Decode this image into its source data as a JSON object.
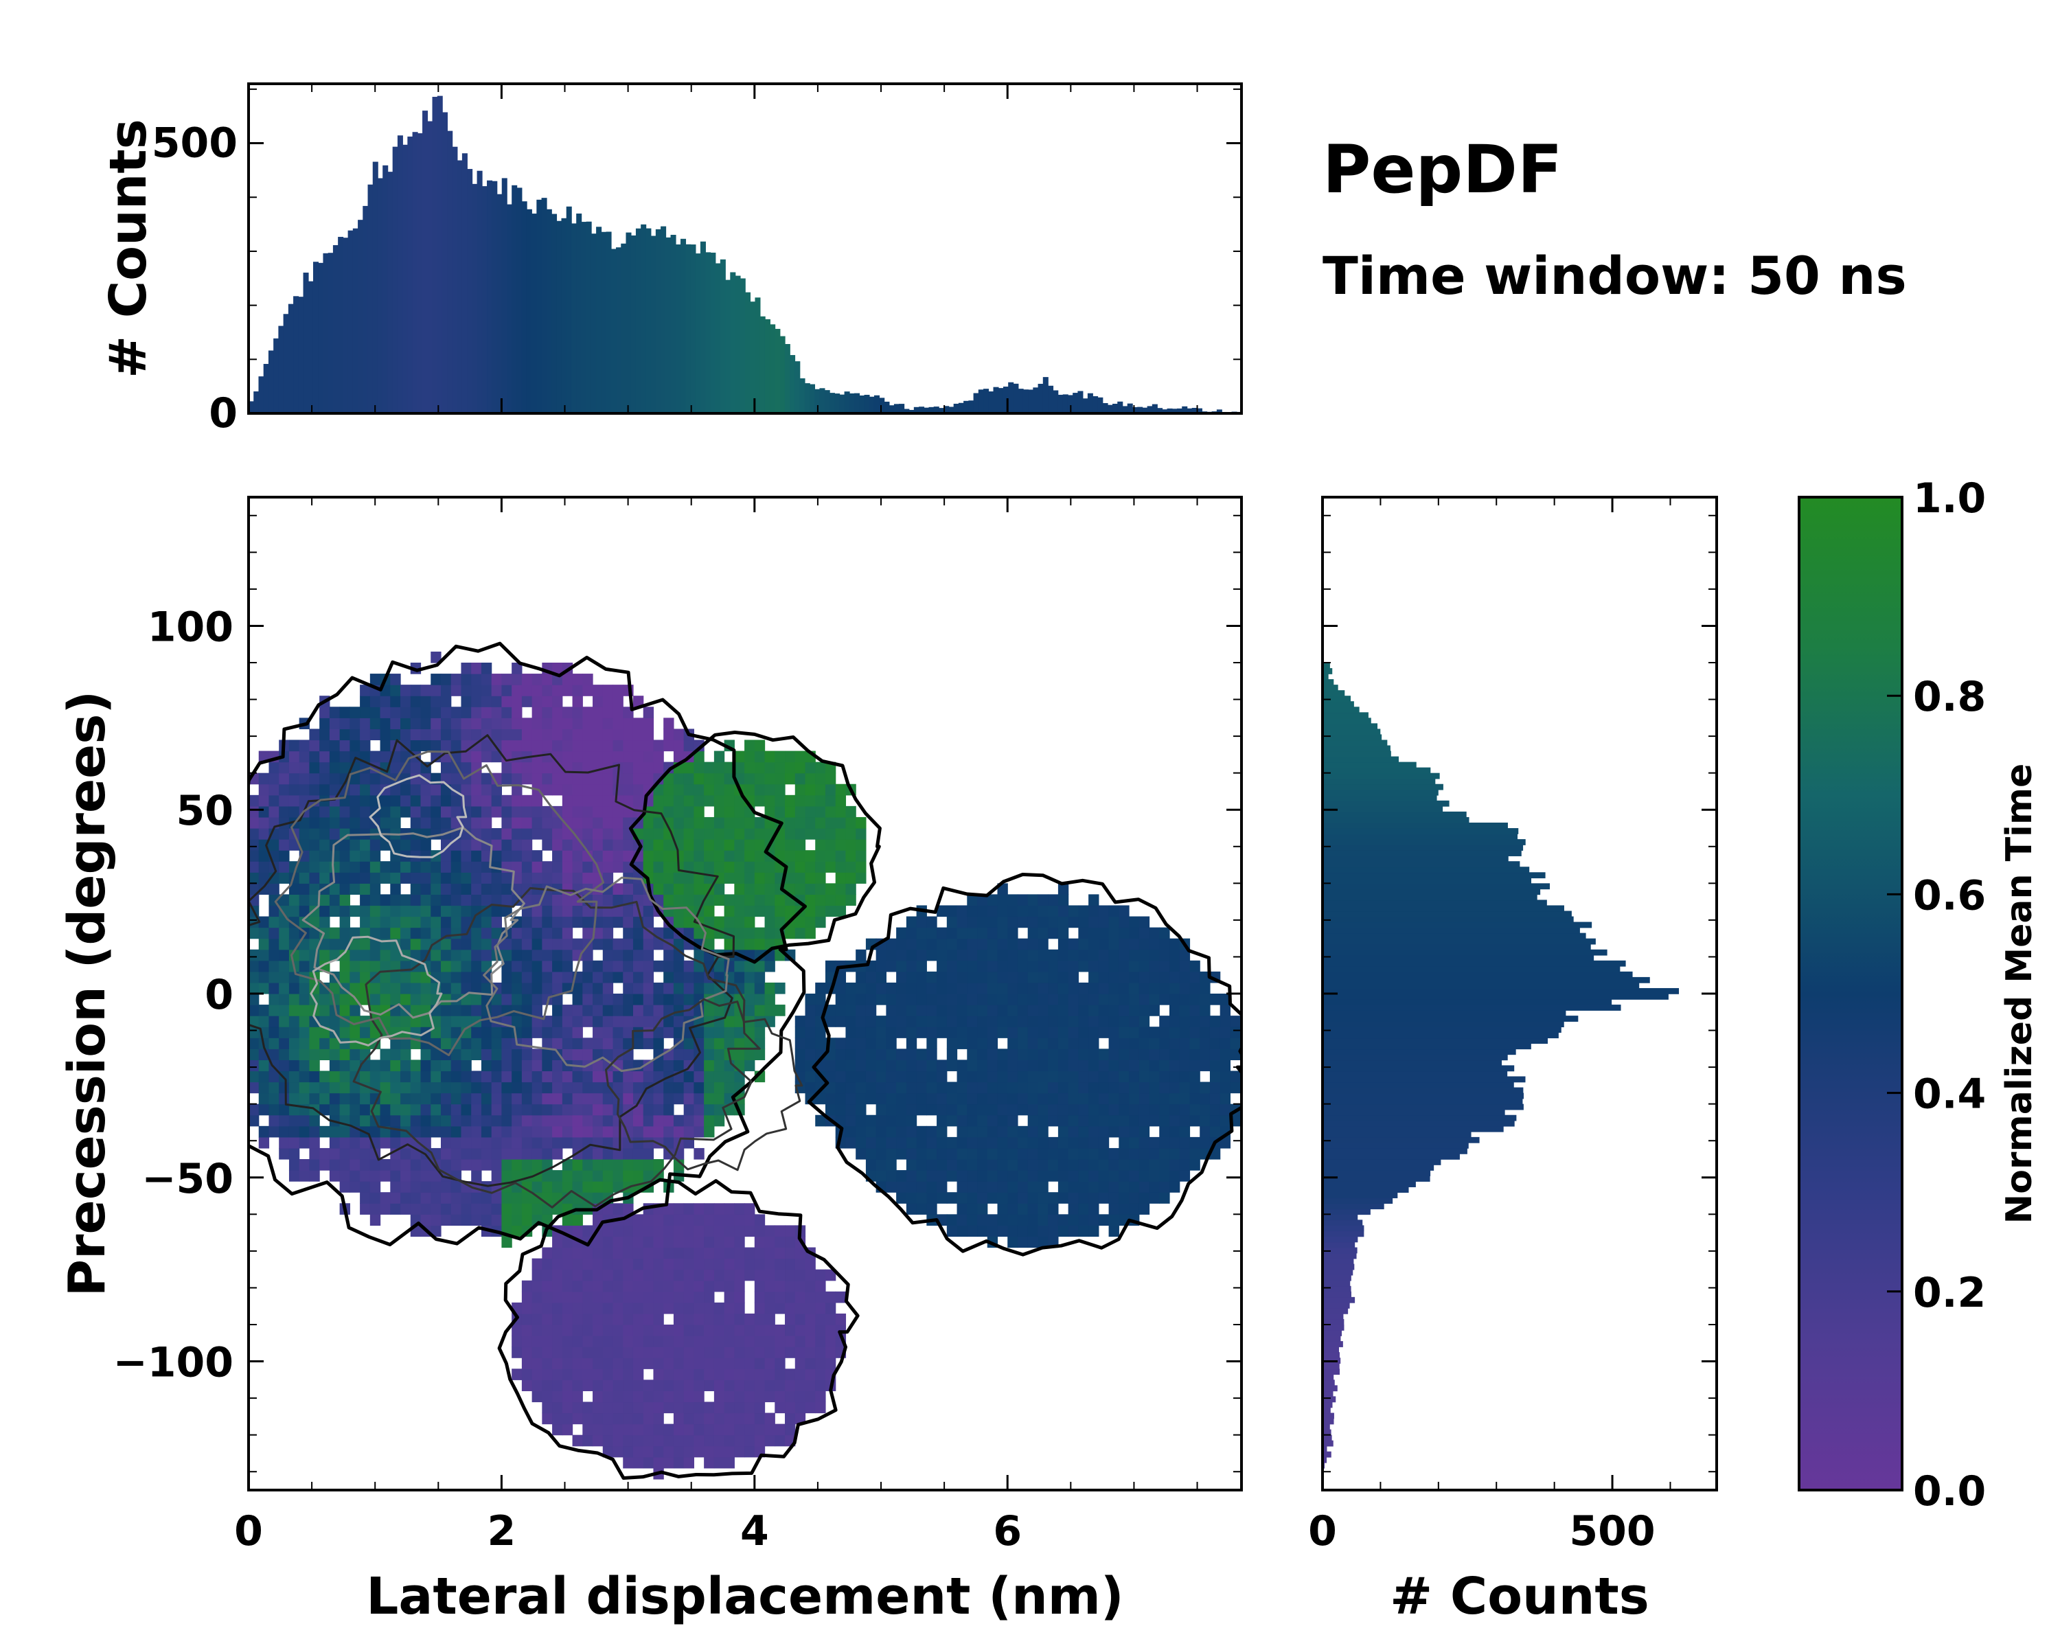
{
  "chart_data": [
    {
      "type": "bar",
      "name": "top-marginal-histogram",
      "title": "",
      "ylabel": "# Counts",
      "xlim": [
        0,
        7.85
      ],
      "ylim": [
        0,
        610
      ],
      "yticks": [
        0,
        500
      ],
      "description_points": {
        "x": [
          0.0,
          0.1,
          0.3,
          0.5,
          0.7,
          0.9,
          1.0,
          1.1,
          1.2,
          1.3,
          1.4,
          1.5,
          1.6,
          1.7,
          1.8,
          1.9,
          2.0,
          2.2,
          2.4,
          2.6,
          2.8,
          2.9,
          3.0,
          3.2,
          3.4,
          3.6,
          3.7,
          3.8,
          3.9,
          4.0,
          4.1,
          4.2,
          4.3,
          4.4,
          4.6,
          4.8,
          5.0,
          5.2,
          5.4,
          5.6,
          5.8,
          6.0,
          6.2,
          6.3,
          6.4,
          6.6,
          6.8,
          7.0,
          7.2,
          7.4,
          7.6,
          7.85
        ],
        "y": [
          10,
          70,
          190,
          260,
          320,
          370,
          450,
          470,
          490,
          520,
          550,
          560,
          520,
          470,
          450,
          430,
          420,
          400,
          380,
          370,
          340,
          310,
          350,
          340,
          310,
          300,
          280,
          260,
          250,
          210,
          180,
          150,
          110,
          60,
          40,
          40,
          25,
          10,
          10,
          15,
          40,
          55,
          45,
          65,
          40,
          35,
          20,
          15,
          12,
          10,
          5,
          0
        ]
      },
      "color_norm_time": {
        "x": [
          0.0,
          0.5,
          1.0,
          1.4,
          1.8,
          2.2,
          2.6,
          3.0,
          3.4,
          3.8,
          4.2,
          4.5,
          5.0,
          6.0,
          7.85
        ],
        "t": [
          0.45,
          0.45,
          0.42,
          0.35,
          0.4,
          0.5,
          0.55,
          0.58,
          0.62,
          0.7,
          0.75,
          0.62,
          0.5,
          0.48,
          0.48
        ]
      }
    },
    {
      "type": "heatmap",
      "name": "main-2d-density",
      "xlabel": "Lateral displacement (nm)",
      "ylabel": "Precession (degrees)",
      "xlim": [
        0,
        7.85
      ],
      "ylim": [
        -135,
        135
      ],
      "xticks": [
        0,
        2,
        4,
        6
      ],
      "yticks": [
        -100,
        -50,
        0,
        50,
        100
      ],
      "regions": [
        {
          "label": "core",
          "x_range": [
            0,
            4.3
          ],
          "y_range": [
            -60,
            90
          ],
          "mean_time": "mixed 0.3-0.9"
        },
        {
          "label": "lower-lobe",
          "x_range": [
            2.2,
            5.0
          ],
          "y_range": [
            -135,
            -60
          ],
          "mean_time": "0.15"
        },
        {
          "label": "right-lobe",
          "x_range": [
            4.0,
            7.85
          ],
          "y_range": [
            -72,
            30
          ],
          "mean_time": "0.5"
        }
      ]
    },
    {
      "type": "bar",
      "name": "right-marginal-histogram",
      "orientation": "horizontal",
      "xlabel": "# Counts",
      "xlim": [
        0,
        680
      ],
      "ylim": [
        -135,
        135
      ],
      "xticks": [
        0,
        500
      ],
      "description_points": {
        "y": [
          -130,
          -120,
          -110,
          -100,
          -90,
          -80,
          -70,
          -60,
          -55,
          -50,
          -45,
          -40,
          -35,
          -30,
          -25,
          -20,
          -15,
          -10,
          -5,
          0,
          5,
          10,
          15,
          20,
          25,
          30,
          35,
          40,
          45,
          50,
          55,
          60,
          65,
          70,
          75,
          80,
          85,
          90
        ],
        "v": [
          5,
          15,
          20,
          25,
          40,
          55,
          60,
          70,
          130,
          180,
          220,
          260,
          320,
          350,
          330,
          320,
          350,
          390,
          450,
          610,
          520,
          480,
          460,
          430,
          400,
          380,
          350,
          330,
          320,
          210,
          205,
          190,
          120,
          100,
          80,
          50,
          20,
          5
        ]
      },
      "color_norm_time": {
        "y": [
          -135,
          -100,
          -70,
          -55,
          -40,
          0,
          40,
          60,
          90
        ],
        "t": [
          0.15,
          0.15,
          0.25,
          0.45,
          0.45,
          0.5,
          0.55,
          0.65,
          0.7
        ]
      }
    },
    {
      "type": "colorbar",
      "name": "normalized-mean-time-colorbar",
      "label": "Normalized Mean Time",
      "range": [
        0.0,
        1.0
      ],
      "ticks": [
        "0.0",
        "0.2",
        "0.4",
        "0.6",
        "0.8",
        "1.0"
      ],
      "stops": [
        {
          "t": 0.0,
          "color": "#66379a"
        },
        {
          "t": 0.15,
          "color": "#4f3d94"
        },
        {
          "t": 0.3,
          "color": "#313d88"
        },
        {
          "t": 0.5,
          "color": "#0e3d6e"
        },
        {
          "t": 0.7,
          "color": "#15666a"
        },
        {
          "t": 0.85,
          "color": "#1d7e44"
        },
        {
          "t": 1.0,
          "color": "#238b24"
        }
      ]
    }
  ],
  "labels": {
    "title": "PepDF",
    "subtitle": "Time window: 50 ns",
    "top_ylabel": "# Counts",
    "main_xlabel": "Lateral displacement (nm)",
    "main_ylabel": "Precession (degrees)",
    "right_xlabel": "# Counts",
    "colorbar_label": "Normalized Mean Time"
  }
}
